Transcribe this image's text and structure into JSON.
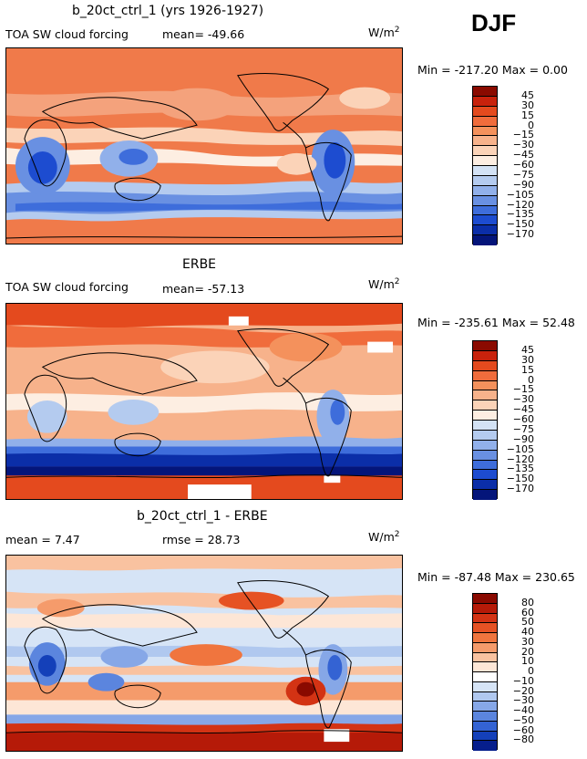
{
  "season": "DJF",
  "panels": [
    {
      "title": "b_20ct_ctrl_1 (yrs 1926-1927)",
      "variable": "TOA SW cloud forcing",
      "mean_text": "mean= -49.66",
      "rmse_text": "",
      "unit_base": "W/m",
      "unit_exp": "2",
      "minmax_text": "Min = -217.20  Max =    0.00",
      "scale": {
        "labels": [
          "45",
          "30",
          "15",
          "0",
          "−15",
          "−30",
          "−45",
          "−60",
          "−75",
          "−90",
          "−105",
          "−120",
          "−135",
          "−150",
          "−170"
        ],
        "colors": [
          "#8a0a00",
          "#c8220c",
          "#e44a1e",
          "#f06c3c",
          "#f4915c",
          "#f7b28b",
          "#fbd3b8",
          "#fdeee2",
          "#d3e2f5",
          "#b4cbef",
          "#91b0ea",
          "#6990e2",
          "#3e6ddb",
          "#1d4cd0",
          "#0b2ea8",
          "#04157a"
        ]
      }
    },
    {
      "title": "ERBE",
      "variable": "TOA SW cloud forcing",
      "mean_text": "mean= -57.13",
      "rmse_text": "",
      "unit_base": "W/m",
      "unit_exp": "2",
      "minmax_text": "Min = -235.61  Max =  52.48",
      "scale": {
        "labels": [
          "45",
          "30",
          "15",
          "0",
          "−15",
          "−30",
          "−45",
          "−60",
          "−75",
          "−90",
          "−105",
          "−120",
          "−135",
          "−150",
          "−170"
        ],
        "colors": [
          "#8a0a00",
          "#c8220c",
          "#e44a1e",
          "#f06c3c",
          "#f4915c",
          "#f7b28b",
          "#fbd3b8",
          "#fdeee2",
          "#d3e2f5",
          "#b4cbef",
          "#91b0ea",
          "#6990e2",
          "#3e6ddb",
          "#1d4cd0",
          "#0b2ea8",
          "#04157a"
        ]
      }
    },
    {
      "title": "b_20ct_ctrl_1 - ERBE",
      "variable": "",
      "mean_text": "mean =    7.47",
      "rmse_text": "rmse =  28.73",
      "unit_base": "W/m",
      "unit_exp": "2",
      "minmax_text": "Min = -87.48  Max = 230.65",
      "scale": {
        "labels": [
          "80",
          "60",
          "50",
          "40",
          "30",
          "20",
          "10",
          "0",
          "−10",
          "−20",
          "−30",
          "−40",
          "−50",
          "−60",
          "−80"
        ],
        "colors": [
          "#8a0a00",
          "#b51a08",
          "#d33314",
          "#e65224",
          "#f0753e",
          "#f59b6b",
          "#f9c2a0",
          "#fde6d6",
          "#ffffff",
          "#d6e4f6",
          "#b0c8ef",
          "#86a7e7",
          "#5b85de",
          "#3463d3",
          "#1440b9",
          "#061e8c"
        ]
      }
    }
  ]
}
